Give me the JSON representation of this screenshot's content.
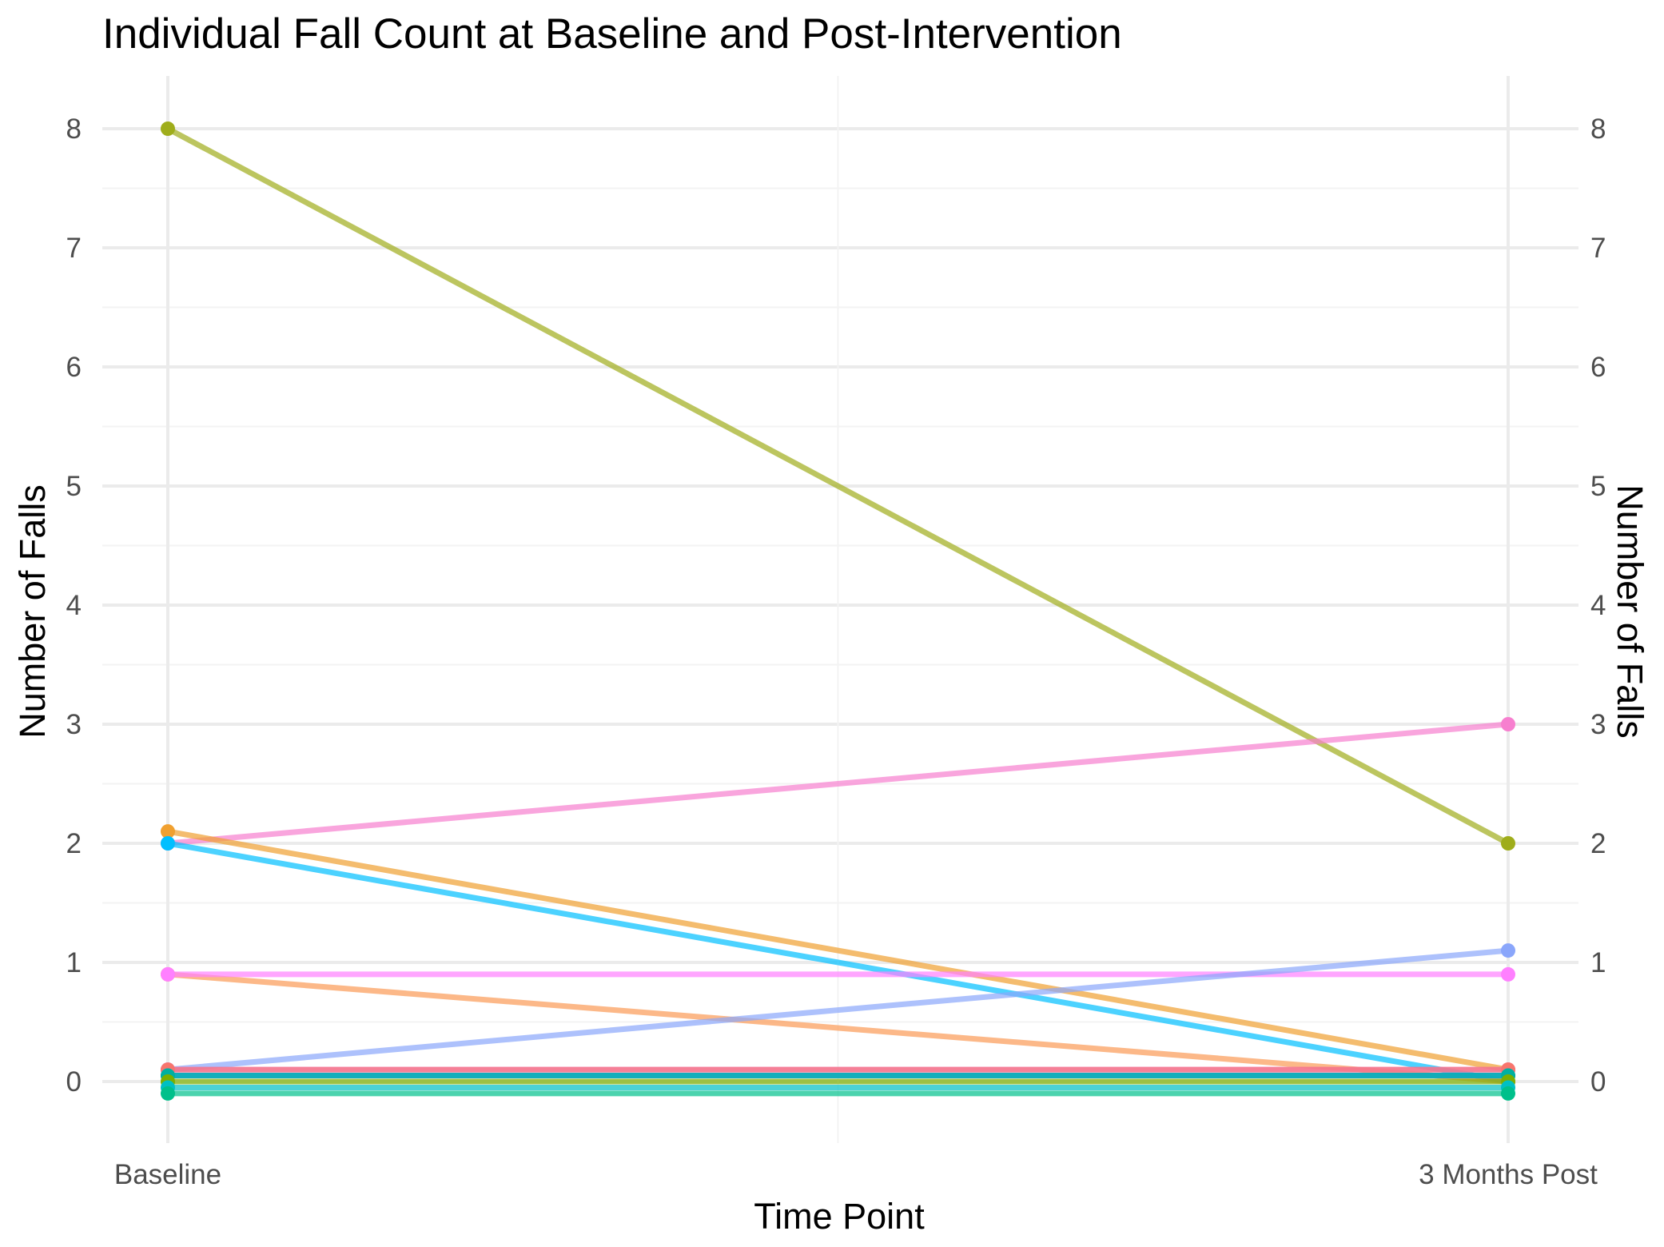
{
  "chart_data": {
    "type": "line",
    "title": "Individual Fall Count at Baseline and Post-Intervention",
    "xlabel": "Time Point",
    "ylabel": "Number of Falls",
    "ylabel_right": "Number of Falls",
    "categories": [
      "Baseline",
      "3 Months Post"
    ],
    "ylim": [
      -0.5,
      8.5
    ],
    "yticks": [
      0,
      1,
      2,
      3,
      4,
      5,
      6,
      7,
      8
    ],
    "grid": true,
    "legend": "none",
    "series": [
      {
        "color": "#9fad1b",
        "values": [
          8,
          2
        ]
      },
      {
        "color": "#f77fcf",
        "values": [
          2,
          3
        ]
      },
      {
        "color": "#f0a030",
        "values": [
          2.1,
          0.1
        ]
      },
      {
        "color": "#00bfff",
        "values": [
          2,
          0
        ]
      },
      {
        "color": "#fb9a55",
        "values": [
          0.9,
          0
        ]
      },
      {
        "color": "#ff80ff",
        "values": [
          0.9,
          0.9
        ]
      },
      {
        "color": "#8aa6fb",
        "values": [
          0.1,
          1.1
        ]
      },
      {
        "color": "#e76bf3",
        "values": [
          0.1,
          0.1
        ]
      },
      {
        "color": "#f8766d",
        "values": [
          0.1,
          0.1
        ]
      },
      {
        "color": "#c77cff",
        "values": [
          0.05,
          0.05
        ]
      },
      {
        "color": "#00a9ff",
        "values": [
          0.05,
          0.05
        ]
      },
      {
        "color": "#00b0a0",
        "values": [
          0.05,
          0.05
        ]
      },
      {
        "color": "#7cae00",
        "values": [
          0,
          0
        ]
      },
      {
        "color": "#00bfc4",
        "values": [
          -0.05,
          -0.05
        ]
      },
      {
        "color": "#00c08b",
        "values": [
          -0.1,
          -0.1
        ]
      }
    ]
  }
}
